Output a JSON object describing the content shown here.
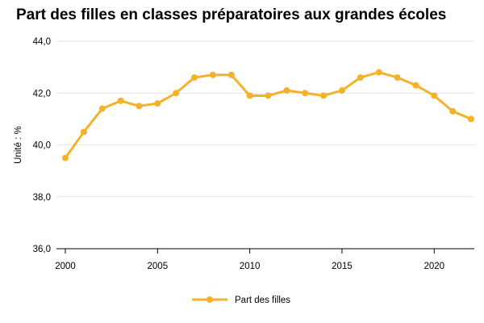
{
  "colors": {
    "series": "#f5b12a",
    "grid": "#e6e6e6",
    "axis": "#000000",
    "text": "#000000"
  },
  "chart_data": {
    "type": "line",
    "title": "Part des filles en classes préparatoires aux grandes écoles",
    "xlabel": "",
    "ylabel": "Unité : %",
    "xlim": [
      2000,
      2022
    ],
    "ylim": [
      36,
      44
    ],
    "x_ticks": [
      2000,
      2005,
      2010,
      2015,
      2020
    ],
    "x_tick_labels": [
      "2000",
      "2005",
      "2010",
      "2015",
      "2020"
    ],
    "y_ticks": [
      36,
      38,
      40,
      42,
      44
    ],
    "y_tick_labels": [
      "36,0",
      "38,0",
      "40,0",
      "42,0",
      "44,0"
    ],
    "grid": true,
    "legend_position": "bottom-center",
    "x": [
      2000,
      2001,
      2002,
      2003,
      2004,
      2005,
      2006,
      2007,
      2008,
      2009,
      2010,
      2011,
      2012,
      2013,
      2014,
      2015,
      2016,
      2017,
      2018,
      2019,
      2020,
      2021,
      2022
    ],
    "series": [
      {
        "name": "Part des filles",
        "color": "#f5b12a",
        "values": [
          39.5,
          40.5,
          41.4,
          41.7,
          41.5,
          41.6,
          42.0,
          42.6,
          42.7,
          42.7,
          41.9,
          41.9,
          42.1,
          42.0,
          41.9,
          42.1,
          42.6,
          42.8,
          42.6,
          42.3,
          41.9,
          41.3,
          41.0
        ]
      }
    ]
  }
}
